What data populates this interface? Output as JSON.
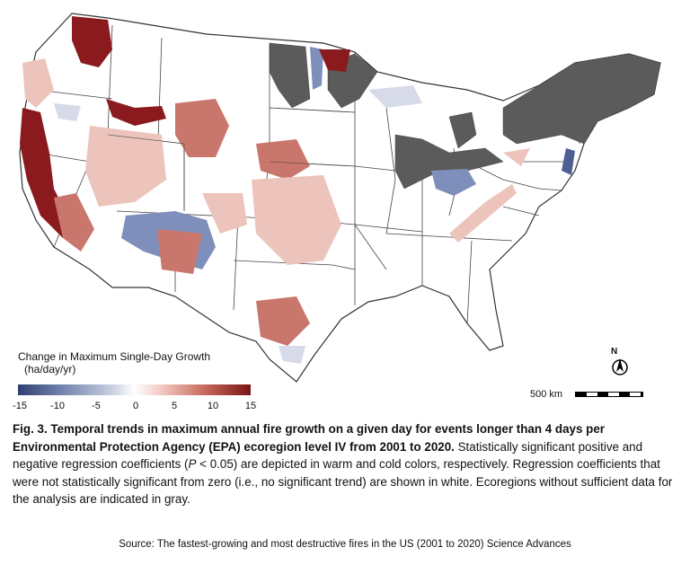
{
  "legend": {
    "title": "Change in Maximum Single-Day Growth",
    "units": "(ha/day/yr)",
    "ticks": [
      "-15",
      "-10",
      "-5",
      "0",
      "5",
      "10",
      "15"
    ],
    "min": -15,
    "max": 15,
    "colors": [
      "#2f3f72",
      "#6f80ab",
      "#c8cde0",
      "#ffffff",
      "#f1c8c0",
      "#c96a5c",
      "#7a1417"
    ]
  },
  "north_label": "N",
  "scale_label": "500 km",
  "caption": {
    "bold": "Fig. 3. Temporal trends in maximum annual fire growth on a given day for events longer than 4 days per Environmental Protection Agency (EPA) ecoregion level IV from 2001 to 2020.",
    "text1": " Statistically significant positive and negative regression coefficients (",
    "p": "P",
    "text2": " < 0.05) are depicted in warm and cold colors, respectively. Regression coefficients that were not statistically significant from zero (i.e., no significant trend) are shown in white. Ecoregions without sufficient data for the analysis are indicated in gray."
  },
  "source": "Source: The fastest-growing and most destructive fires in the US (2001 to 2020) Science Advances",
  "map_colors": {
    "insufficient": "#5b5b5b",
    "strong_positive": "#8b1a1e",
    "moderate_positive": "#c9776c",
    "weak_positive": "#ecc4bc",
    "negative": "#7f8fbb",
    "weak_negative": "#d7dbe9",
    "border": "#333333"
  }
}
